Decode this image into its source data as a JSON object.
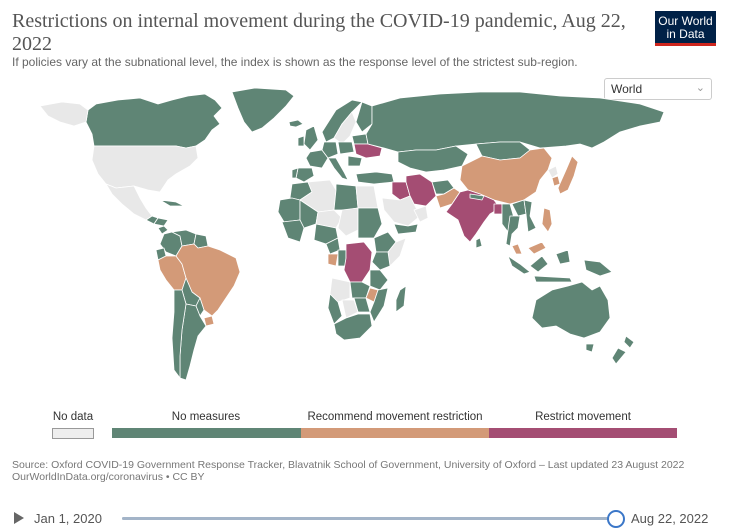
{
  "header": {
    "title": "Restrictions on internal movement during the COVID-19 pandemic, Aug 22, 2022",
    "subtitle": "If policies vary at the subnational level, the index is shown as the response level of the strictest sub-region.",
    "logo_line1": "Our World",
    "logo_line2": "in Data"
  },
  "region_select": {
    "value": "World",
    "icon": "chevron-down-icon"
  },
  "legend": {
    "no_data": {
      "label": "No data",
      "color": "#eeeeee"
    },
    "categories": [
      {
        "label": "No measures",
        "color": "#5f8575"
      },
      {
        "label": "Recommend movement restriction",
        "color": "#d39a78"
      },
      {
        "label": "Restrict movement",
        "color": "#a44d73"
      }
    ]
  },
  "colors": {
    "no_data": "#e8e8e8",
    "no_measures": "#5f8575",
    "recommend": "#d39a78",
    "restrict": "#a44d73",
    "ocean": "#ffffff",
    "border": "#ffffff"
  },
  "source": {
    "line1": "Source: Oxford COVID-19 Government Response Tracker, Blavatnik School of Government, University of Oxford – Last updated 23 August 2022",
    "line2": "OurWorldInData.org/coronavirus • CC BY"
  },
  "timeline": {
    "start_label": "Jan 1, 2020",
    "end_label": "Aug 22, 2022",
    "position": 1.0,
    "play_icon": "play-icon"
  },
  "map_data": {
    "Canada": "no_measures",
    "United States": "no_data",
    "Greenland": "no_measures",
    "Mexico": "no_data",
    "Guatemala": "no_measures",
    "Honduras": "no_measures",
    "Nicaragua": "no_measures",
    "Cuba": "no_measures",
    "Colombia": "no_measures",
    "Venezuela": "no_measures",
    "Guyana": "no_measures",
    "Ecuador": "no_measures",
    "Peru": "recommend",
    "Brazil": "recommend",
    "Bolivia": "no_measures",
    "Paraguay": "no_measures",
    "Uruguay": "recommend",
    "Argentina": "no_measures",
    "Chile": "no_measures",
    "Iceland": "no_measures",
    "Norway": "no_measures",
    "Sweden": "no_data",
    "Finland": "no_measures",
    "United Kingdom": "no_measures",
    "Ireland": "no_measures",
    "France": "no_measures",
    "Spain": "no_measures",
    "Portugal": "no_measures",
    "Germany": "no_measures",
    "Poland": "no_measures",
    "Italy": "no_measures",
    "Ukraine": "restrict",
    "Belarus": "no_measures",
    "Romania": "no_measures",
    "Turkey": "no_measures",
    "Russia": "no_measures",
    "Kazakhstan": "no_measures",
    "Mongolia": "no_measures",
    "China": "recommend",
    "North Korea": "no_data",
    "South Korea": "recommend",
    "Japan": "recommend",
    "Iran": "restrict",
    "Iraq": "restrict",
    "Saudi Arabia": "no_data",
    "Yemen": "no_measures",
    "Oman": "no_data",
    "Afghanistan": "no_measures",
    "Pakistan": "recommend",
    "India": "restrict",
    "Nepal": "no_measures",
    "Bangladesh": "restrict",
    "Myanmar": "no_measures",
    "Thailand": "no_measures",
    "Vietnam": "no_measures",
    "Laos": "no_measures",
    "Sri Lanka": "no_measures",
    "Malaysia": "recommend",
    "Philippines": "recommend",
    "Indonesia": "no_measures",
    "Papua New Guinea": "no_measures",
    "Australia": "no_measures",
    "New Zealand": "no_measures",
    "Morocco": "no_measures",
    "Algeria": "no_data",
    "Libya": "no_measures",
    "Egypt": "no_data",
    "Mauritania": "no_measures",
    "Mali": "no_measures",
    "Niger": "no_data",
    "Chad": "no_data",
    "Sudan": "no_measures",
    "Ethiopia": "no_measures",
    "Somalia": "no_data",
    "Nigeria": "no_measures",
    "Cameroon": "no_measures",
    "Gabon": "recommend",
    "Congo": "no_measures",
    "DR Congo": "restrict",
    "Kenya": "no_measures",
    "Tanzania": "no_measures",
    "Angola": "no_data",
    "Zambia": "no_measures",
    "Malawi": "recommend",
    "Mozambique": "no_measures",
    "Zimbabwe": "no_measures",
    "Namibia": "no_measures",
    "Botswana": "no_data",
    "South Africa": "no_measures",
    "Madagascar": "no_measures"
  }
}
